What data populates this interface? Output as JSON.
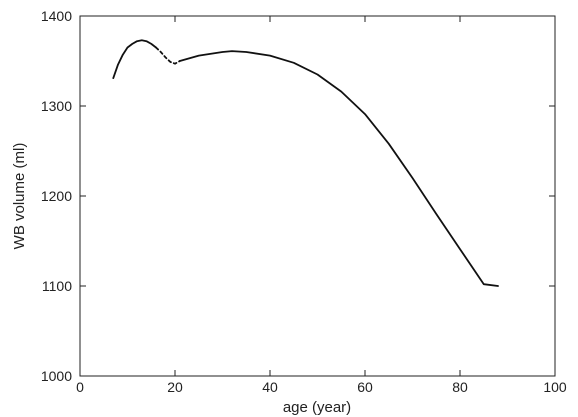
{
  "chart_data": {
    "type": "line",
    "xlabel": "age (year)",
    "ylabel": "WB volume (ml)",
    "xlim": [
      0,
      100
    ],
    "ylim": [
      1000,
      1400
    ],
    "x_ticks": [
      0,
      20,
      40,
      60,
      80,
      100
    ],
    "y_ticks": [
      1000,
      1100,
      1200,
      1300,
      1400
    ],
    "x_tick_labels": [
      "0",
      "20",
      "40",
      "60",
      "80",
      "100"
    ],
    "y_tick_labels": [
      "1000",
      "1100",
      "1200",
      "1300",
      "1400"
    ],
    "grid": false,
    "legend": "none",
    "line_color": "#111111",
    "series": [
      {
        "style": "solid",
        "points": [
          [
            7,
            1331
          ],
          [
            8,
            1346
          ],
          [
            9,
            1357
          ],
          [
            10,
            1365
          ],
          [
            11,
            1369
          ],
          [
            12,
            1372
          ],
          [
            13,
            1373
          ],
          [
            14,
            1372
          ],
          [
            15,
            1369
          ],
          [
            16,
            1365
          ]
        ]
      },
      {
        "style": "dashed",
        "points": [
          [
            16,
            1365
          ],
          [
            17,
            1360
          ],
          [
            18,
            1354
          ],
          [
            19,
            1349
          ],
          [
            20,
            1347
          ],
          [
            21,
            1350
          ]
        ]
      },
      {
        "style": "solid",
        "points": [
          [
            21,
            1350
          ],
          [
            25,
            1356
          ],
          [
            30,
            1360
          ],
          [
            32,
            1361
          ],
          [
            35,
            1360
          ],
          [
            40,
            1356
          ],
          [
            45,
            1348
          ],
          [
            50,
            1335
          ],
          [
            55,
            1316
          ],
          [
            60,
            1291
          ],
          [
            65,
            1258
          ],
          [
            70,
            1220
          ],
          [
            75,
            1180
          ],
          [
            80,
            1141
          ],
          [
            85,
            1102
          ],
          [
            88,
            1100
          ]
        ]
      }
    ]
  }
}
